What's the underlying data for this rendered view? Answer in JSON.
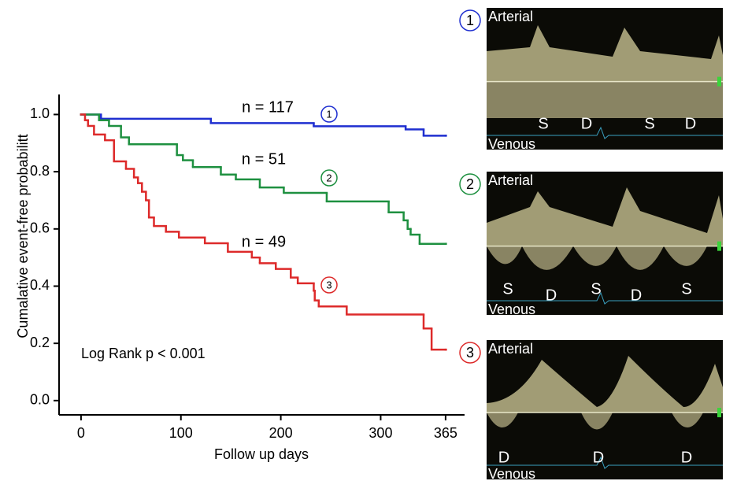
{
  "chart_data": {
    "type": "step",
    "y_label": "Cumalative event-free probabilitt",
    "x_label": "Follow up days",
    "annotation": "Log Rank p < 0.001",
    "xlim": [
      -22,
      384
    ],
    "ylim": [
      -0.05,
      1.07
    ],
    "xticks": [
      0,
      100,
      200,
      300,
      365
    ],
    "yticks": [
      {
        "value": 0,
        "label": "0.0"
      },
      0.2,
      0.4,
      0.6,
      0.8,
      {
        "value": 1,
        "label": "1.0"
      }
    ],
    "series": [
      {
        "name": "1",
        "label": "n = 117",
        "color": "#1f2fd0",
        "x": [
          0,
          20,
          130,
          233,
          325,
          343,
          365
        ],
        "values": [
          1.0,
          0.985,
          0.97,
          0.959,
          0.948,
          0.926,
          0.926
        ]
      },
      {
        "name": "2",
        "label": "n = 51",
        "color": "#1e9040",
        "x": [
          0,
          18,
          28,
          40,
          48,
          96,
          102,
          112,
          140,
          155,
          179,
          203,
          246,
          308,
          323,
          327,
          330,
          339,
          365
        ],
        "values": [
          1.0,
          0.98,
          0.96,
          0.92,
          0.896,
          0.858,
          0.84,
          0.816,
          0.79,
          0.773,
          0.745,
          0.726,
          0.696,
          0.658,
          0.63,
          0.6,
          0.58,
          0.548,
          0.548
        ]
      },
      {
        "name": "3",
        "label": "n = 49",
        "color": "#dd2a2a",
        "x": [
          0,
          4,
          7,
          13,
          24,
          33,
          45,
          53,
          57,
          61,
          65,
          68,
          73,
          85,
          98,
          124,
          147,
          171,
          179,
          195,
          210,
          217,
          233,
          234,
          238,
          266,
          343,
          351,
          365
        ],
        "values": [
          1.0,
          0.98,
          0.96,
          0.93,
          0.91,
          0.836,
          0.81,
          0.78,
          0.76,
          0.73,
          0.7,
          0.64,
          0.61,
          0.59,
          0.57,
          0.55,
          0.52,
          0.5,
          0.48,
          0.46,
          0.43,
          0.41,
          0.384,
          0.35,
          0.329,
          0.301,
          0.252,
          0.178,
          0.178
        ]
      }
    ]
  },
  "panels": [
    {
      "number": "1",
      "top_label": "Arterial",
      "bottom_label": "Venous",
      "wave_labels": [
        "S",
        "D",
        "S",
        "D"
      ]
    },
    {
      "number": "2",
      "top_label": "Arterial",
      "bottom_label": "Venous",
      "wave_labels": [
        "S",
        "D",
        "S",
        "D",
        "S"
      ]
    },
    {
      "number": "3",
      "top_label": "Arterial",
      "bottom_label": "Venous",
      "wave_labels": [
        "D",
        "D",
        "D"
      ]
    }
  ]
}
